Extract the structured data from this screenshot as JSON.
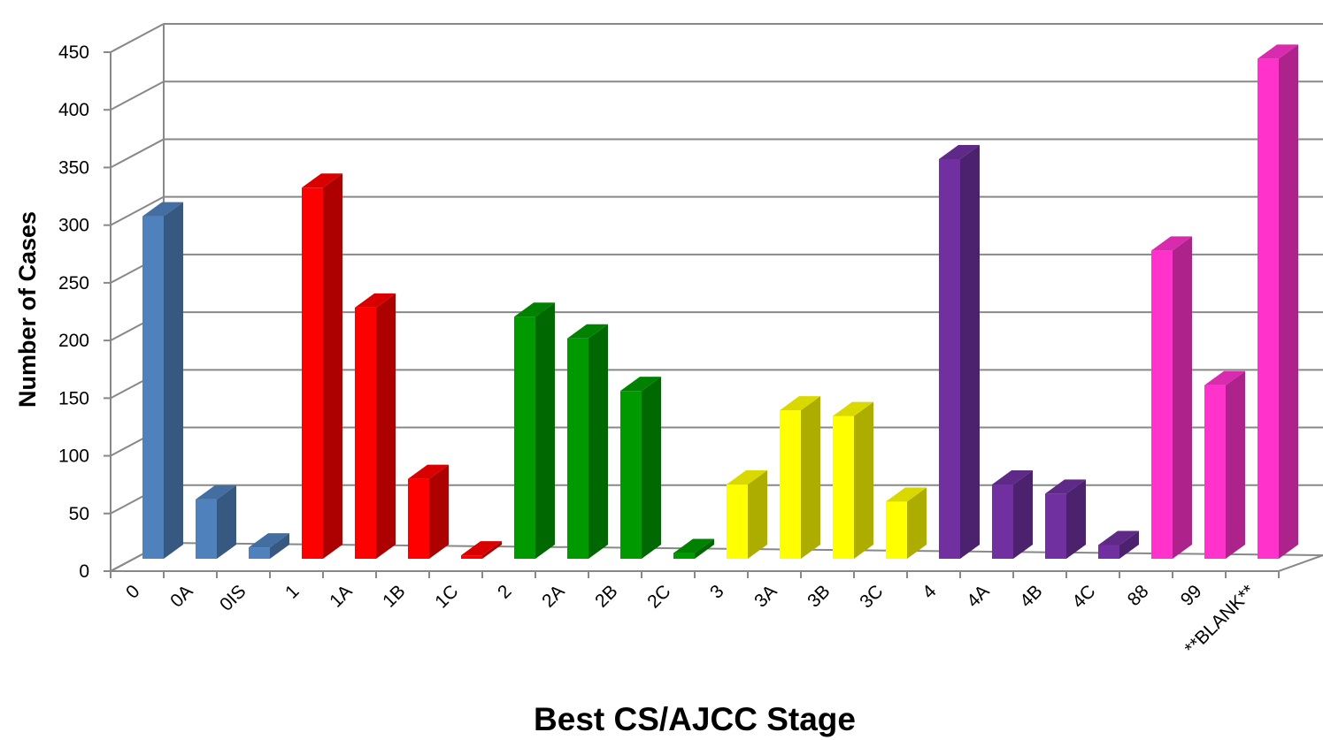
{
  "chart_data": {
    "type": "bar",
    "title": "",
    "xlabel": "Best CS/AJCC Stage",
    "ylabel": "Number of Cases",
    "ylim": [
      0,
      450
    ],
    "yticks": [
      0,
      50,
      100,
      150,
      200,
      250,
      300,
      350,
      400,
      450
    ],
    "grid": true,
    "legend": "none",
    "style": "3d-column",
    "categories": [
      "0",
      "0A",
      "0IS",
      "1",
      "1A",
      "1B",
      "1C",
      "2",
      "2A",
      "2B",
      "2C",
      "3",
      "3A",
      "3B",
      "3C",
      "4",
      "4A",
      "4B",
      "4C",
      "88",
      "99",
      "**BLANK**"
    ],
    "values": [
      300,
      52,
      10,
      325,
      220,
      70,
      3,
      212,
      193,
      147,
      5,
      65,
      130,
      125,
      50,
      350,
      65,
      57,
      12,
      270,
      152,
      438
    ],
    "colors": [
      "#4F81BD",
      "#4F81BD",
      "#4F81BD",
      "#FF0000",
      "#FF0000",
      "#FF0000",
      "#FF0000",
      "#009900",
      "#009900",
      "#009900",
      "#009900",
      "#FFFF00",
      "#FFFF00",
      "#FFFF00",
      "#FFFF00",
      "#7030A0",
      "#7030A0",
      "#7030A0",
      "#7030A0",
      "#FF33CC",
      "#FF33CC",
      "#FF33CC"
    ]
  }
}
